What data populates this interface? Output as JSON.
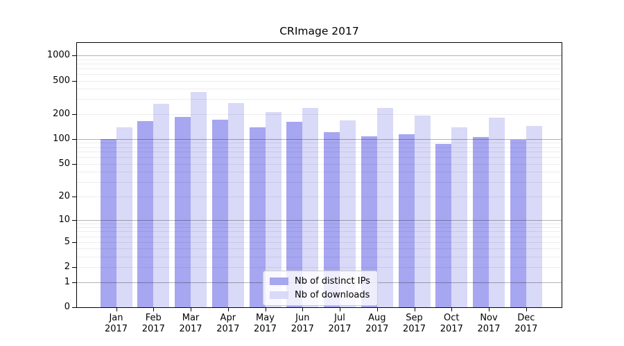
{
  "chart_data": {
    "type": "bar",
    "title": "CRImage 2017",
    "categories": [
      "Jan 2017",
      "Feb 2017",
      "Mar 2017",
      "Apr 2017",
      "May 2017",
      "Jun 2017",
      "Jul 2017",
      "Aug 2017",
      "Sep 2017",
      "Oct 2017",
      "Nov 2017",
      "Dec 2017"
    ],
    "series": [
      {
        "name": "Nb of distinct IPs",
        "color": "#a6a6f1",
        "values": [
          100,
          163,
          183,
          170,
          139,
          160,
          120,
          108,
          115,
          87,
          106,
          98
        ]
      },
      {
        "name": "Nb of downloads",
        "color": "#d9d9f8",
        "values": [
          139,
          262,
          362,
          269,
          211,
          235,
          167,
          237,
          190,
          137,
          179,
          144
        ]
      }
    ],
    "y_scale": "log1p",
    "y_ticks_labeled": [
      0,
      1,
      2,
      5,
      10,
      20,
      50,
      100,
      200,
      500,
      1000
    ],
    "y_gridlines_major": [
      1,
      10,
      100,
      1000
    ],
    "y_gridlines_minor": [
      2,
      3,
      4,
      5,
      6,
      7,
      8,
      9,
      20,
      30,
      40,
      50,
      60,
      70,
      80,
      90,
      200,
      300,
      400,
      500,
      600,
      700,
      800,
      900
    ],
    "ylim": [
      0,
      1400
    ],
    "xlabel": "",
    "ylabel": "",
    "grid": true,
    "legend_position": "inside lower center"
  }
}
